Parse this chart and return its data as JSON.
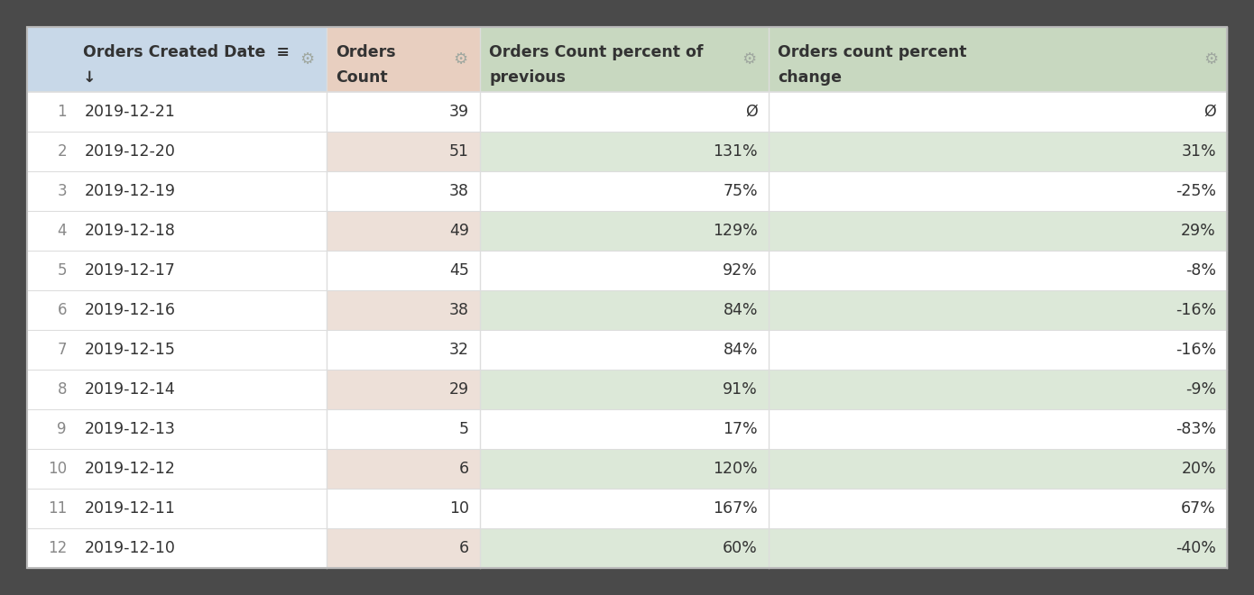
{
  "bg_color": "#4a4a4a",
  "table_bg": "#ffffff",
  "outer_border": "#cccccc",
  "header_col1_bg": "#c8d8e8",
  "header_col2_bg": "#e8cfc0",
  "header_col3_bg": "#c8d8c0",
  "header_col4_bg": "#c8d8c0",
  "row_odd_col1": "#ffffff",
  "row_even_col1": "#ffffff",
  "row_odd_col2": "#ffffff",
  "row_even_col2": "#ede0d8",
  "row_odd_col3": "#ffffff",
  "row_even_col3": "#dce8d8",
  "row_odd_col4": "#ffffff",
  "row_even_col4": "#dce8d8",
  "col1_header": "Orders Created Date ≡\n↓",
  "col2_header": "Orders\nCount",
  "col3_header": "Orders Count percent of\nprevious",
  "col4_header": "Orders count percent\nchange",
  "dates": [
    "2019-12-21",
    "2019-12-20",
    "2019-12-19",
    "2019-12-18",
    "2019-12-17",
    "2019-12-16",
    "2019-12-15",
    "2019-12-14",
    "2019-12-13",
    "2019-12-12",
    "2019-12-11",
    "2019-12-10"
  ],
  "counts": [
    39,
    51,
    38,
    49,
    45,
    38,
    32,
    29,
    5,
    6,
    10,
    6
  ],
  "pct_previous": [
    "Ø",
    "131%",
    "75%",
    "129%",
    "92%",
    "84%",
    "84%",
    "91%",
    "17%",
    "120%",
    "167%",
    "60%"
  ],
  "pct_change": [
    "Ø",
    "31%",
    "-25%",
    "29%",
    "-8%",
    "-16%",
    "-16%",
    "-9%",
    "-83%",
    "20%",
    "67%",
    "-40%"
  ],
  "gear_color": "#a0a8a0",
  "text_color": "#333333",
  "row_number_color": "#888888",
  "divider_color": "#dddddd"
}
